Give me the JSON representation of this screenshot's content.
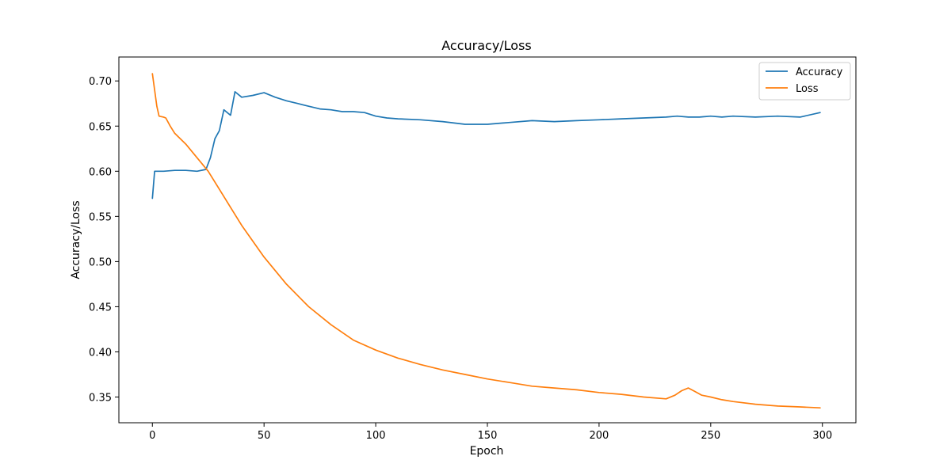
{
  "chart_data": {
    "type": "line",
    "title": "Accuracy/Loss",
    "xlabel": "Epoch",
    "ylabel": "Accuracy/Loss",
    "xlim": [
      -15,
      315
    ],
    "ylim": [
      0.3215,
      0.7265
    ],
    "xticks": [
      0,
      50,
      100,
      150,
      200,
      250,
      300
    ],
    "yticks": [
      0.35,
      0.4,
      0.45,
      0.5,
      0.55,
      0.6,
      0.65,
      0.7
    ],
    "grid": false,
    "legend_position": "top-right",
    "series": [
      {
        "name": "Accuracy",
        "color": "#1f77b4",
        "x": [
          0,
          1,
          5,
          10,
          15,
          20,
          24,
          26,
          28,
          30,
          32,
          35,
          37,
          40,
          45,
          50,
          55,
          60,
          65,
          70,
          75,
          80,
          85,
          90,
          95,
          100,
          105,
          110,
          120,
          130,
          140,
          150,
          160,
          170,
          180,
          190,
          200,
          210,
          220,
          230,
          235,
          240,
          245,
          250,
          255,
          260,
          270,
          280,
          290,
          299
        ],
        "y": [
          0.57,
          0.6,
          0.6,
          0.601,
          0.601,
          0.6,
          0.602,
          0.615,
          0.636,
          0.645,
          0.668,
          0.662,
          0.688,
          0.682,
          0.684,
          0.687,
          0.682,
          0.678,
          0.675,
          0.672,
          0.669,
          0.668,
          0.666,
          0.666,
          0.665,
          0.661,
          0.659,
          0.658,
          0.657,
          0.655,
          0.652,
          0.652,
          0.654,
          0.656,
          0.655,
          0.656,
          0.657,
          0.658,
          0.659,
          0.66,
          0.661,
          0.66,
          0.66,
          0.661,
          0.66,
          0.661,
          0.66,
          0.661,
          0.66,
          0.665
        ]
      },
      {
        "name": "Loss",
        "color": "#ff7f0e",
        "x": [
          0,
          1,
          2,
          3,
          5,
          6,
          8,
          10,
          15,
          20,
          25,
          30,
          35,
          40,
          50,
          60,
          70,
          80,
          90,
          100,
          110,
          120,
          130,
          140,
          150,
          160,
          170,
          180,
          190,
          200,
          210,
          220,
          230,
          234,
          237,
          240,
          243,
          246,
          250,
          255,
          260,
          270,
          280,
          290,
          299
        ],
        "y": [
          0.708,
          0.69,
          0.672,
          0.661,
          0.66,
          0.659,
          0.65,
          0.642,
          0.63,
          0.615,
          0.6,
          0.58,
          0.56,
          0.54,
          0.505,
          0.475,
          0.45,
          0.43,
          0.413,
          0.402,
          0.393,
          0.386,
          0.38,
          0.375,
          0.37,
          0.366,
          0.362,
          0.36,
          0.358,
          0.355,
          0.353,
          0.35,
          0.348,
          0.352,
          0.357,
          0.36,
          0.356,
          0.352,
          0.35,
          0.347,
          0.345,
          0.342,
          0.34,
          0.339,
          0.338
        ]
      }
    ]
  }
}
